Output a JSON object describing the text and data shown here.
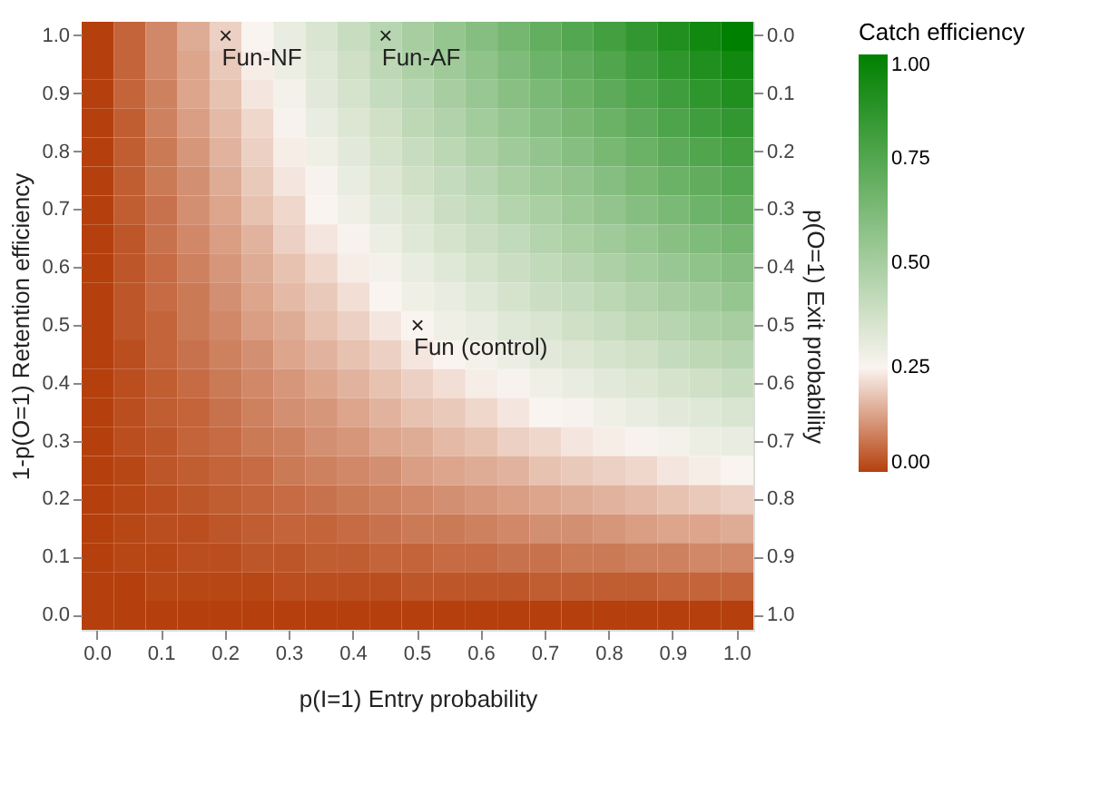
{
  "chart_data": {
    "type": "heatmap",
    "xlabel": "p(I=1) Entry probability",
    "ylabel": "1-p(O=1) Retention efficiency",
    "y2label": "p(O=1) Exit probability",
    "legend_title": "Catch efficiency",
    "categories": [
      "0.0",
      null,
      "0.1",
      null,
      "0.2",
      null,
      "0.3",
      null,
      "0.4",
      null,
      "0.5",
      null,
      "0.6",
      null,
      "0.7",
      null,
      "0.8",
      null,
      "0.9",
      null,
      "1.0"
    ],
    "y_categories": [
      "1.0",
      null,
      "0.9",
      null,
      "0.8",
      null,
      "0.7",
      null,
      "0.6",
      null,
      "0.5",
      null,
      "0.4",
      null,
      "0.3",
      null,
      "0.2",
      null,
      "0.1",
      null,
      "0.0"
    ],
    "y2_categories": [
      "0.0",
      null,
      "0.1",
      null,
      "0.2",
      null,
      "0.3",
      null,
      "0.4",
      null,
      "0.5",
      null,
      "0.6",
      null,
      "0.7",
      null,
      "0.8",
      null,
      "0.9",
      null,
      "1.0"
    ],
    "cells": [
      [
        0,
        0.05,
        0.1,
        0.15,
        0.2,
        0.25,
        0.3,
        0.35,
        0.4,
        0.45,
        0.5,
        0.55,
        0.6,
        0.65,
        0.7,
        0.75,
        0.8,
        0.85,
        0.9,
        0.95,
        1
      ],
      [
        0,
        0.05,
        0.1,
        0.14,
        0.19,
        0.24,
        0.29,
        0.33,
        0.38,
        0.43,
        0.48,
        0.52,
        0.57,
        0.62,
        0.67,
        0.71,
        0.76,
        0.81,
        0.86,
        0.9,
        0.95
      ],
      [
        0,
        0.05,
        0.09,
        0.14,
        0.18,
        0.23,
        0.27,
        0.32,
        0.36,
        0.41,
        0.45,
        0.5,
        0.54,
        0.59,
        0.63,
        0.68,
        0.72,
        0.77,
        0.81,
        0.86,
        0.9
      ],
      [
        0,
        0.04,
        0.09,
        0.13,
        0.17,
        0.21,
        0.26,
        0.3,
        0.34,
        0.38,
        0.43,
        0.47,
        0.51,
        0.55,
        0.6,
        0.64,
        0.68,
        0.72,
        0.77,
        0.81,
        0.85
      ],
      [
        0,
        0.04,
        0.08,
        0.12,
        0.16,
        0.2,
        0.24,
        0.28,
        0.32,
        0.36,
        0.4,
        0.44,
        0.48,
        0.52,
        0.56,
        0.6,
        0.64,
        0.68,
        0.72,
        0.76,
        0.8
      ],
      [
        0,
        0.04,
        0.08,
        0.11,
        0.15,
        0.19,
        0.23,
        0.26,
        0.3,
        0.34,
        0.38,
        0.41,
        0.45,
        0.49,
        0.53,
        0.56,
        0.6,
        0.64,
        0.68,
        0.71,
        0.75
      ],
      [
        0,
        0.04,
        0.07,
        0.11,
        0.14,
        0.18,
        0.21,
        0.25,
        0.28,
        0.32,
        0.35,
        0.39,
        0.42,
        0.46,
        0.49,
        0.53,
        0.56,
        0.6,
        0.63,
        0.67,
        0.7
      ],
      [
        0,
        0.03,
        0.07,
        0.1,
        0.13,
        0.16,
        0.2,
        0.23,
        0.26,
        0.29,
        0.33,
        0.36,
        0.39,
        0.42,
        0.46,
        0.49,
        0.52,
        0.55,
        0.59,
        0.62,
        0.65
      ],
      [
        0,
        0.03,
        0.06,
        0.09,
        0.12,
        0.15,
        0.18,
        0.21,
        0.24,
        0.27,
        0.3,
        0.33,
        0.36,
        0.39,
        0.42,
        0.45,
        0.48,
        0.51,
        0.54,
        0.57,
        0.6
      ],
      [
        0,
        0.03,
        0.06,
        0.08,
        0.11,
        0.14,
        0.17,
        0.19,
        0.22,
        0.25,
        0.28,
        0.3,
        0.33,
        0.36,
        0.39,
        0.41,
        0.44,
        0.47,
        0.5,
        0.52,
        0.55
      ],
      [
        0,
        0.03,
        0.05,
        0.08,
        0.1,
        0.13,
        0.15,
        0.18,
        0.2,
        0.23,
        0.25,
        0.28,
        0.3,
        0.33,
        0.35,
        0.38,
        0.4,
        0.43,
        0.45,
        0.48,
        0.5
      ],
      [
        0,
        0.02,
        0.05,
        0.07,
        0.09,
        0.11,
        0.14,
        0.16,
        0.18,
        0.2,
        0.23,
        0.25,
        0.27,
        0.29,
        0.32,
        0.34,
        0.36,
        0.38,
        0.41,
        0.43,
        0.45
      ],
      [
        0,
        0.02,
        0.04,
        0.06,
        0.08,
        0.1,
        0.12,
        0.14,
        0.16,
        0.18,
        0.2,
        0.22,
        0.24,
        0.26,
        0.28,
        0.3,
        0.32,
        0.34,
        0.36,
        0.38,
        0.4
      ],
      [
        0,
        0.02,
        0.04,
        0.05,
        0.07,
        0.09,
        0.11,
        0.12,
        0.14,
        0.16,
        0.18,
        0.19,
        0.21,
        0.23,
        0.25,
        0.26,
        0.28,
        0.3,
        0.32,
        0.33,
        0.35
      ],
      [
        0,
        0.02,
        0.03,
        0.05,
        0.06,
        0.08,
        0.09,
        0.11,
        0.12,
        0.14,
        0.15,
        0.17,
        0.18,
        0.2,
        0.21,
        0.23,
        0.24,
        0.26,
        0.27,
        0.29,
        0.3
      ],
      [
        0,
        0.01,
        0.03,
        0.04,
        0.05,
        0.06,
        0.08,
        0.09,
        0.1,
        0.11,
        0.13,
        0.14,
        0.15,
        0.16,
        0.18,
        0.19,
        0.2,
        0.21,
        0.23,
        0.24,
        0.25
      ],
      [
        0,
        0.01,
        0.02,
        0.03,
        0.04,
        0.05,
        0.06,
        0.07,
        0.08,
        0.09,
        0.1,
        0.11,
        0.12,
        0.13,
        0.14,
        0.15,
        0.16,
        0.17,
        0.18,
        0.19,
        0.2
      ],
      [
        0,
        0.01,
        0.02,
        0.02,
        0.03,
        0.04,
        0.05,
        0.05,
        0.06,
        0.07,
        0.08,
        0.08,
        0.09,
        0.1,
        0.11,
        0.11,
        0.12,
        0.13,
        0.14,
        0.14,
        0.15
      ],
      [
        0,
        0.01,
        0.01,
        0.02,
        0.02,
        0.03,
        0.03,
        0.04,
        0.04,
        0.05,
        0.05,
        0.06,
        0.06,
        0.07,
        0.07,
        0.08,
        0.08,
        0.09,
        0.09,
        0.1,
        0.1
      ],
      [
        0,
        0,
        0.01,
        0.01,
        0.01,
        0.01,
        0.02,
        0.02,
        0.02,
        0.02,
        0.03,
        0.03,
        0.03,
        0.03,
        0.04,
        0.04,
        0.04,
        0.04,
        0.05,
        0.05,
        0.05
      ],
      [
        0,
        0,
        0,
        0,
        0,
        0,
        0,
        0,
        0,
        0,
        0,
        0,
        0,
        0,
        0,
        0,
        0,
        0,
        0,
        0,
        0
      ]
    ],
    "colors": [
      "#b5400d",
      "#faf4f0",
      "#008000"
    ],
    "clim": [
      0,
      1
    ],
    "cticks": [
      {
        "value": 0,
        "label": "0.00"
      },
      {
        "value": 0.25,
        "label": "0.25"
      },
      {
        "value": 0.5,
        "label": "0.50"
      },
      {
        "value": 0.75,
        "label": "0.75"
      },
      {
        "value": 1,
        "label": "1.00"
      }
    ],
    "annotations": [
      "×",
      "Fun-NF",
      "×",
      "Fun-AF",
      "×",
      "Fun (control)"
    ],
    "grid": false
  }
}
